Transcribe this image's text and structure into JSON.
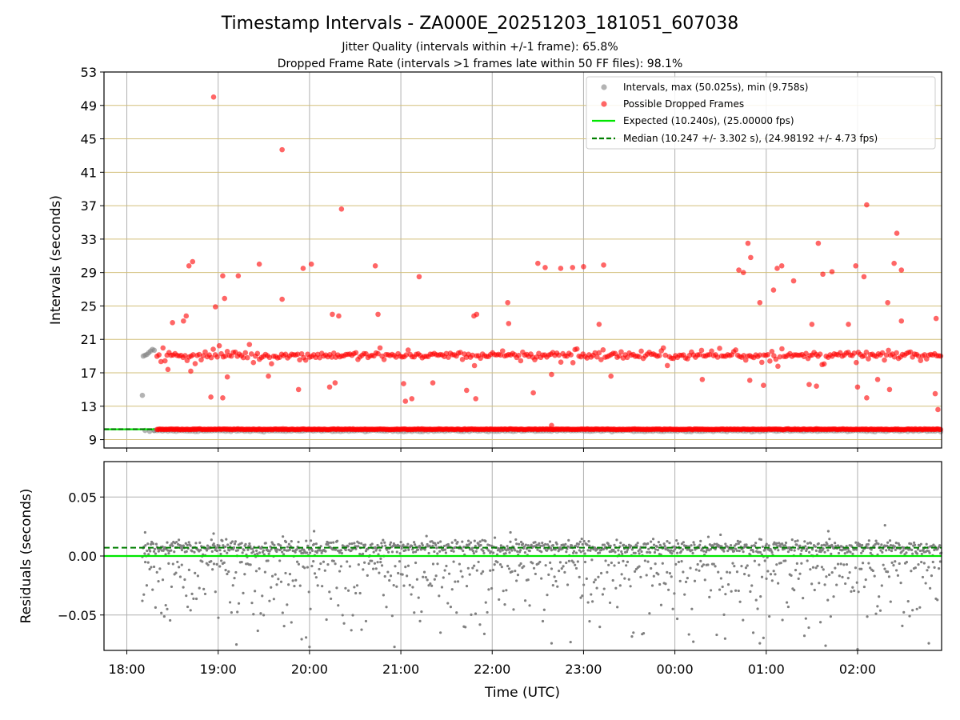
{
  "title": "Timestamp Intervals - ZA000E_20251203_181051_607038",
  "subtitle_1": "Jitter Quality (intervals within +/-1 frame): 65.8%",
  "subtitle_2": "Dropped Frame Rate (intervals >1 frames late within 50 FF files): 98.1%",
  "colors": {
    "intervals": "#808080",
    "dropped": "#ff0000",
    "expected": "#00e600",
    "median": "#007f00",
    "hgrid": "#d2bf7a",
    "vgrid": "#b0b0b0"
  },
  "chart_data": [
    {
      "type": "scatter",
      "name": "intervals",
      "xlabel": "",
      "ylabel": "Intervals (seconds)",
      "xlim_hours": [
        17.75,
        26.92
      ],
      "ylim": [
        8,
        53
      ],
      "ytick_values": [
        9,
        13,
        17,
        21,
        25,
        29,
        33,
        37,
        41,
        45,
        49,
        53
      ],
      "ytick_labels": [
        "9",
        "13",
        "17",
        "21",
        "25",
        "29",
        "33",
        "37",
        "41",
        "45",
        "49",
        "53"
      ],
      "grid": "on",
      "legend_position": "top-right",
      "series": [
        {
          "name": "Intervals, max (50.025s), min (9.758s)",
          "key": "intervals",
          "marker": "circle",
          "description_values": {
            "max": 50.025,
            "min": 9.758
          },
          "points": [
            {
              "x": 18.17,
              "y": 14.3
            },
            {
              "x": 18.18,
              "y": 19.0
            },
            {
              "x": 18.2,
              "y": 19.1
            },
            {
              "x": 18.22,
              "y": 19.2
            },
            {
              "x": 18.24,
              "y": 19.4
            },
            {
              "x": 18.26,
              "y": 19.6
            },
            {
              "x": 18.28,
              "y": 19.8
            },
            {
              "x": 18.3,
              "y": 19.7
            },
            {
              "x": 18.2,
              "y": 10.1
            },
            {
              "x": 18.25,
              "y": 10.0
            },
            {
              "x": 18.3,
              "y": 10.1
            }
          ]
        },
        {
          "name": "Possible Dropped Frames",
          "key": "dropped",
          "marker": "circle",
          "band_low": 10.24,
          "band_mid_range": [
            17.5,
            21.0
          ],
          "points": [
            {
              "x": 18.95,
              "y": 50.0
            },
            {
              "x": 19.7,
              "y": 43.7
            },
            {
              "x": 20.35,
              "y": 36.6
            },
            {
              "x": 26.1,
              "y": 37.1
            },
            {
              "x": 25.98,
              "y": 29.8
            },
            {
              "x": 26.43,
              "y": 33.7
            },
            {
              "x": 25.57,
              "y": 32.5
            },
            {
              "x": 24.8,
              "y": 32.5
            },
            {
              "x": 24.83,
              "y": 30.8
            },
            {
              "x": 19.05,
              "y": 28.6
            },
            {
              "x": 19.22,
              "y": 28.6
            },
            {
              "x": 19.45,
              "y": 30.0
            },
            {
              "x": 18.68,
              "y": 29.8
            },
            {
              "x": 18.72,
              "y": 30.3
            },
            {
              "x": 19.93,
              "y": 29.5
            },
            {
              "x": 20.02,
              "y": 30.0
            },
            {
              "x": 20.72,
              "y": 29.8
            },
            {
              "x": 21.2,
              "y": 28.5
            },
            {
              "x": 22.5,
              "y": 30.1
            },
            {
              "x": 22.58,
              "y": 29.6
            },
            {
              "x": 22.75,
              "y": 29.5
            },
            {
              "x": 22.88,
              "y": 29.6
            },
            {
              "x": 23.0,
              "y": 29.7
            },
            {
              "x": 23.22,
              "y": 29.9
            },
            {
              "x": 24.7,
              "y": 29.3
            },
            {
              "x": 24.75,
              "y": 29.0
            },
            {
              "x": 25.12,
              "y": 29.5
            },
            {
              "x": 25.17,
              "y": 29.8
            },
            {
              "x": 25.62,
              "y": 28.8
            },
            {
              "x": 25.72,
              "y": 29.1
            },
            {
              "x": 26.07,
              "y": 28.5
            },
            {
              "x": 26.4,
              "y": 30.1
            },
            {
              "x": 26.48,
              "y": 29.3
            },
            {
              "x": 19.7,
              "y": 25.8
            },
            {
              "x": 18.97,
              "y": 24.9
            },
            {
              "x": 19.07,
              "y": 25.9
            },
            {
              "x": 22.17,
              "y": 25.4
            },
            {
              "x": 24.93,
              "y": 25.4
            },
            {
              "x": 25.08,
              "y": 26.9
            },
            {
              "x": 26.33,
              "y": 25.4
            },
            {
              "x": 25.3,
              "y": 28.0
            },
            {
              "x": 18.62,
              "y": 23.2
            },
            {
              "x": 18.5,
              "y": 23.0
            },
            {
              "x": 18.65,
              "y": 23.8
            },
            {
              "x": 20.25,
              "y": 24.0
            },
            {
              "x": 20.32,
              "y": 23.8
            },
            {
              "x": 20.75,
              "y": 24.0
            },
            {
              "x": 21.83,
              "y": 24.0
            },
            {
              "x": 21.8,
              "y": 23.8
            },
            {
              "x": 23.17,
              "y": 22.8
            },
            {
              "x": 22.18,
              "y": 22.9
            },
            {
              "x": 25.5,
              "y": 22.8
            },
            {
              "x": 25.9,
              "y": 22.8
            },
            {
              "x": 26.48,
              "y": 23.2
            },
            {
              "x": 26.86,
              "y": 23.5
            },
            {
              "x": 18.45,
              "y": 17.4
            },
            {
              "x": 18.7,
              "y": 17.2
            },
            {
              "x": 19.55,
              "y": 16.6
            },
            {
              "x": 19.1,
              "y": 16.5
            },
            {
              "x": 18.92,
              "y": 14.1
            },
            {
              "x": 19.05,
              "y": 14.0
            },
            {
              "x": 19.88,
              "y": 15.0
            },
            {
              "x": 20.22,
              "y": 15.3
            },
            {
              "x": 20.28,
              "y": 15.8
            },
            {
              "x": 21.05,
              "y": 13.6
            },
            {
              "x": 21.12,
              "y": 13.9
            },
            {
              "x": 21.03,
              "y": 15.7
            },
            {
              "x": 21.35,
              "y": 15.8
            },
            {
              "x": 21.72,
              "y": 14.9
            },
            {
              "x": 21.82,
              "y": 13.9
            },
            {
              "x": 22.45,
              "y": 14.6
            },
            {
              "x": 22.65,
              "y": 16.8
            },
            {
              "x": 23.3,
              "y": 16.6
            },
            {
              "x": 24.3,
              "y": 16.2
            },
            {
              "x": 24.82,
              "y": 16.1
            },
            {
              "x": 24.97,
              "y": 15.5
            },
            {
              "x": 25.47,
              "y": 15.6
            },
            {
              "x": 25.55,
              "y": 15.4
            },
            {
              "x": 26.0,
              "y": 15.3
            },
            {
              "x": 26.1,
              "y": 14.0
            },
            {
              "x": 26.22,
              "y": 16.2
            },
            {
              "x": 26.35,
              "y": 15.0
            },
            {
              "x": 26.85,
              "y": 14.5
            },
            {
              "x": 26.88,
              "y": 12.6
            },
            {
              "x": 22.65,
              "y": 10.7
            },
            {
              "x": 25.55,
              "y": 10.3
            }
          ]
        }
      ],
      "lines": [
        {
          "name": "Expected (10.240s), (25.00000 fps)",
          "key": "expected",
          "style": "solid",
          "y": 10.24
        },
        {
          "name": "Median (10.247 +/- 3.302 s), (24.98192 +/- 4.73 fps)",
          "key": "median",
          "style": "dashed",
          "y": 10.247
        }
      ]
    },
    {
      "type": "scatter",
      "name": "residuals",
      "xlabel": "Time (UTC)",
      "ylabel": "Residuals (seconds)",
      "xlim_hours": [
        17.75,
        26.92
      ],
      "ylim": [
        -0.08,
        0.08
      ],
      "ytick_values": [
        0.05,
        0.0,
        -0.05
      ],
      "ytick_labels": [
        "0.05",
        "0.00",
        "−0.05"
      ],
      "xtick_hours": [
        18,
        19,
        20,
        21,
        22,
        23,
        24,
        25,
        26
      ],
      "xtick_labels": [
        "18:00",
        "19:00",
        "20:00",
        "21:00",
        "22:00",
        "23:00",
        "00:00",
        "01:00",
        "02:00"
      ],
      "grid": "on",
      "series": [
        {
          "name": "residuals",
          "key": "intervals",
          "band_center": 0.007,
          "band_halfwidth": 0.008,
          "outlier_min": -0.08,
          "points": [
            {
              "x": 18.2,
              "y": 0.02
            },
            {
              "x": 18.95,
              "y": 0.019
            },
            {
              "x": 20.05,
              "y": 0.021
            },
            {
              "x": 22.2,
              "y": 0.02
            },
            {
              "x": 24.5,
              "y": 0.018
            },
            {
              "x": 25.68,
              "y": 0.021
            },
            {
              "x": 26.3,
              "y": 0.026
            },
            {
              "x": 19.2,
              "y": -0.075
            },
            {
              "x": 20.0,
              "y": -0.077
            },
            {
              "x": 20.93,
              "y": -0.077
            },
            {
              "x": 22.65,
              "y": -0.074
            },
            {
              "x": 24.55,
              "y": -0.07
            },
            {
              "x": 24.93,
              "y": -0.074
            },
            {
              "x": 25.65,
              "y": -0.076
            },
            {
              "x": 26.0,
              "y": -0.079
            },
            {
              "x": 26.78,
              "y": -0.074
            }
          ]
        },
        {
          "name": "expected",
          "key": "expected",
          "style": "solid",
          "y": 0.0
        },
        {
          "name": "median",
          "key": "median",
          "style": "dashed",
          "y": 0.007
        }
      ]
    }
  ]
}
